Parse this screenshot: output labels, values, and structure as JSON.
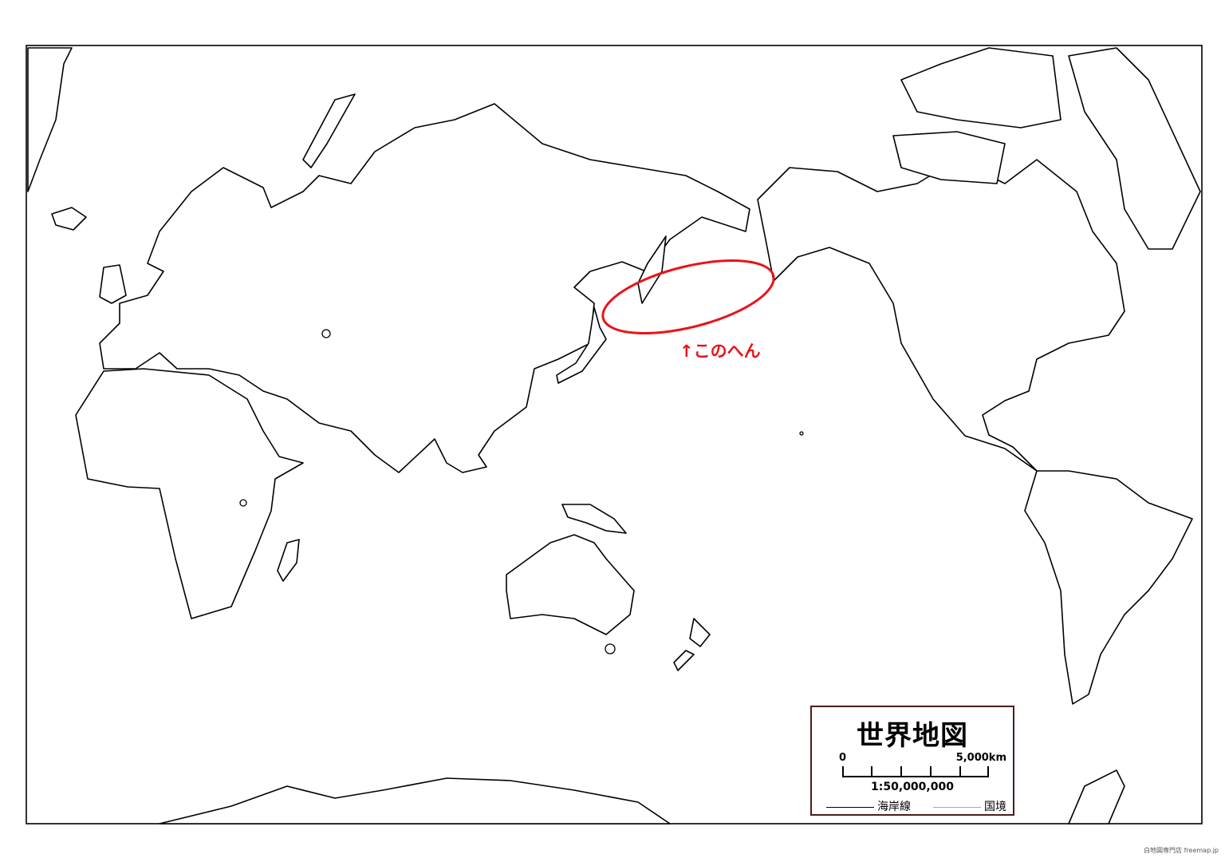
{
  "map": {
    "title": "世界地図",
    "scale_bar": {
      "start_label": "0",
      "end_label": "5,000km",
      "ratio": "1:50,000,000"
    },
    "legend": {
      "coastline_label": "海岸線",
      "border_label": "国境"
    },
    "annotation": {
      "text": "↑このへん",
      "color": "#e8131b"
    },
    "credit": "白地図専門店 freemap.jp",
    "colors": {
      "land_fill": "#ffffff",
      "outline": "#000000",
      "highlight": "#e8131b",
      "legend_border": "#4a1e1e"
    }
  }
}
